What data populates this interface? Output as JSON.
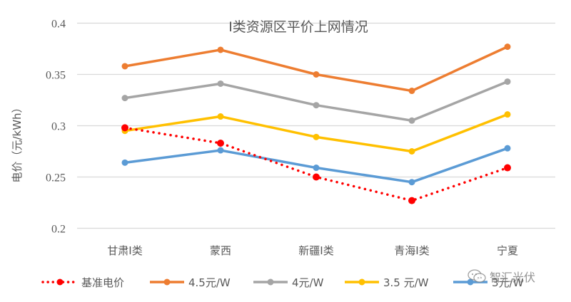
{
  "chart_data": {
    "type": "line",
    "title": "I类资源区平价上网情况",
    "xlabel": "",
    "ylabel": "电价（元/kWh）",
    "ylim": [
      0.2,
      0.4
    ],
    "yticks": [
      "0.2",
      "0.25",
      "0.3",
      "0.35",
      "0.4"
    ],
    "ytick_values": [
      0.2,
      0.25,
      0.3,
      0.35,
      0.4
    ],
    "grid": true,
    "legend_position": "bottom",
    "categories": [
      "甘肃I类",
      "蒙西",
      "新疆I类",
      "青海I类",
      "宁夏"
    ],
    "series": [
      {
        "name": "基准电价",
        "color": "#FF0000",
        "style": "dotted",
        "values": [
          0.298,
          0.283,
          0.25,
          0.227,
          0.259
        ]
      },
      {
        "name": "4.5元/W",
        "color": "#ED7D31",
        "style": "solid",
        "values": [
          0.358,
          0.374,
          0.35,
          0.334,
          0.377
        ]
      },
      {
        "name": "4元/W",
        "color": "#A5A5A5",
        "style": "solid",
        "values": [
          0.327,
          0.341,
          0.32,
          0.305,
          0.343
        ]
      },
      {
        "name": "3.5 元/W",
        "color": "#FFC000",
        "style": "solid",
        "values": [
          0.295,
          0.309,
          0.289,
          0.275,
          0.311
        ]
      },
      {
        "name": "3元/W",
        "color": "#5B9BD5",
        "style": "solid",
        "values": [
          0.264,
          0.276,
          0.259,
          0.245,
          0.278
        ]
      }
    ]
  },
  "watermark": {
    "text": "智汇光伏",
    "icon": "wechat-icon"
  },
  "colors": {
    "grid": "#D9D9D9",
    "text": "#595959"
  }
}
